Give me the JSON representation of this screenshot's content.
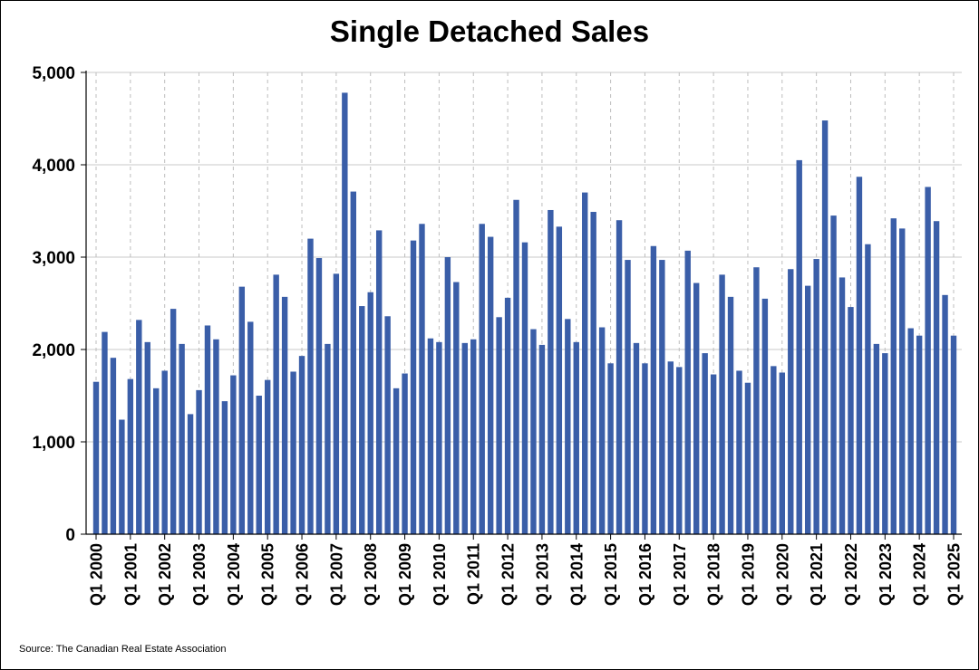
{
  "chart_data": {
    "type": "bar",
    "title": "Single Detached Sales",
    "xlabel": "",
    "ylabel": "",
    "ylim": [
      0,
      5000
    ],
    "yticks": [
      0,
      1000,
      2000,
      3000,
      4000,
      5000
    ],
    "ytick_labels": [
      "0",
      "1,000",
      "2,000",
      "3,000",
      "4,000",
      "5,000"
    ],
    "grid": true,
    "legend": "none",
    "bar_color": "#3a5ea8",
    "tick_labels": [
      "Q1 2000",
      "Q1 2001",
      "Q1 2002",
      "Q1 2003",
      "Q1 2004",
      "Q1 2005",
      "Q1 2006",
      "Q1 2007",
      "Q1 2008",
      "Q1 2009",
      "Q1 2010",
      "Q1 2011",
      "Q1 2012",
      "Q1 2013",
      "Q1 2014",
      "Q1 2015",
      "Q1 2016",
      "Q1 2017",
      "Q1 2018",
      "Q1 2019",
      "Q1 2020",
      "Q1 2021",
      "Q1 2022",
      "Q1 2023",
      "Q1 2024",
      "Q1 2025"
    ],
    "categories": [
      "Q1 2000",
      "Q2 2000",
      "Q3 2000",
      "Q4 2000",
      "Q1 2001",
      "Q2 2001",
      "Q3 2001",
      "Q4 2001",
      "Q1 2002",
      "Q2 2002",
      "Q3 2002",
      "Q4 2002",
      "Q1 2003",
      "Q2 2003",
      "Q3 2003",
      "Q4 2003",
      "Q1 2004",
      "Q2 2004",
      "Q3 2004",
      "Q4 2004",
      "Q1 2005",
      "Q2 2005",
      "Q3 2005",
      "Q4 2005",
      "Q1 2006",
      "Q2 2006",
      "Q3 2006",
      "Q4 2006",
      "Q1 2007",
      "Q2 2007",
      "Q3 2007",
      "Q4 2007",
      "Q1 2008",
      "Q2 2008",
      "Q3 2008",
      "Q4 2008",
      "Q1 2009",
      "Q2 2009",
      "Q3 2009",
      "Q4 2009",
      "Q1 2010",
      "Q2 2010",
      "Q3 2010",
      "Q4 2010",
      "Q1 2011",
      "Q2 2011",
      "Q3 2011",
      "Q4 2011",
      "Q1 2012",
      "Q2 2012",
      "Q3 2012",
      "Q4 2012",
      "Q1 2013",
      "Q2 2013",
      "Q3 2013",
      "Q4 2013",
      "Q1 2014",
      "Q2 2014",
      "Q3 2014",
      "Q4 2014",
      "Q1 2015",
      "Q2 2015",
      "Q3 2015",
      "Q4 2015",
      "Q1 2016",
      "Q2 2016",
      "Q3 2016",
      "Q4 2016",
      "Q1 2017",
      "Q2 2017",
      "Q3 2017",
      "Q4 2017",
      "Q1 2018",
      "Q2 2018",
      "Q3 2018",
      "Q4 2018",
      "Q1 2019",
      "Q2 2019",
      "Q3 2019",
      "Q4 2019",
      "Q1 2020",
      "Q2 2020",
      "Q3 2020",
      "Q4 2020",
      "Q1 2021",
      "Q2 2021",
      "Q3 2021",
      "Q4 2021",
      "Q1 2022",
      "Q2 2022",
      "Q3 2022",
      "Q4 2022",
      "Q1 2023",
      "Q2 2023",
      "Q3 2023",
      "Q4 2023",
      "Q1 2024",
      "Q2 2024",
      "Q3 2024",
      "Q4 2024",
      "Q1 2025"
    ],
    "values": [
      1650,
      2190,
      1910,
      1240,
      1680,
      2320,
      2080,
      1580,
      1770,
      2440,
      2060,
      1300,
      1560,
      2260,
      2110,
      1440,
      1720,
      2680,
      2300,
      1500,
      1670,
      2810,
      2570,
      1760,
      1930,
      3200,
      2990,
      2060,
      2820,
      4780,
      3710,
      2470,
      2620,
      3290,
      2360,
      1580,
      1740,
      3180,
      3360,
      2120,
      2080,
      3000,
      2730,
      2070,
      2110,
      3360,
      3220,
      2350,
      2560,
      3620,
      3160,
      2220,
      2050,
      3510,
      3330,
      2330,
      2080,
      3700,
      3490,
      2240,
      1850,
      3400,
      2970,
      2070,
      1850,
      3120,
      2970,
      1870,
      1810,
      3070,
      2720,
      1960,
      1730,
      2810,
      2570,
      1770,
      1640,
      2890,
      2550,
      1820,
      1750,
      2870,
      4050,
      2690,
      2980,
      4480,
      3450,
      2780,
      2460,
      3870,
      3140,
      2060,
      1960,
      3420,
      3310,
      2230,
      2150,
      3760,
      3390,
      2590,
      2150
    ]
  },
  "source": "Source: The Canadian Real Estate Association"
}
